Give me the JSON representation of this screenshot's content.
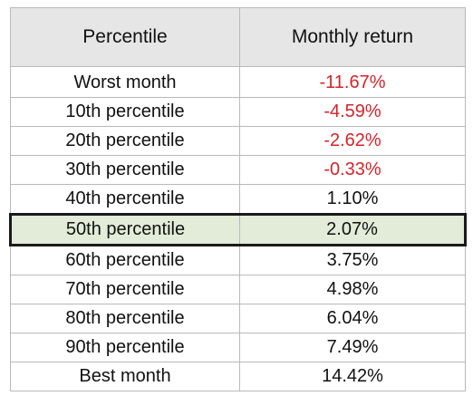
{
  "table": {
    "headers": [
      "Percentile",
      "Monthly return"
    ],
    "rows": [
      {
        "label": "Worst month",
        "value": "-11.67%",
        "negative": true
      },
      {
        "label": "10th percentile",
        "value": "-4.59%",
        "negative": true
      },
      {
        "label": "20th percentile",
        "value": "-2.62%",
        "negative": true
      },
      {
        "label": "30th percentile",
        "value": "-0.33%",
        "negative": true
      },
      {
        "label": "40th percentile",
        "value": "1.10%",
        "negative": false
      },
      {
        "label": "50th percentile",
        "value": "2.07%",
        "negative": false,
        "highlighted": true
      },
      {
        "label": "60th percentile",
        "value": "3.75%",
        "negative": false
      },
      {
        "label": "70th percentile",
        "value": "4.98%",
        "negative": false
      },
      {
        "label": "80th percentile",
        "value": "6.04%",
        "negative": false
      },
      {
        "label": "90th percentile",
        "value": "7.49%",
        "negative": false
      },
      {
        "label": "Best month",
        "value": "14.42%",
        "negative": false
      }
    ]
  },
  "colors": {
    "negative_text": "#d3242c",
    "highlight_fill": "#e2ecd9",
    "header_fill": "#e6e6e6"
  }
}
